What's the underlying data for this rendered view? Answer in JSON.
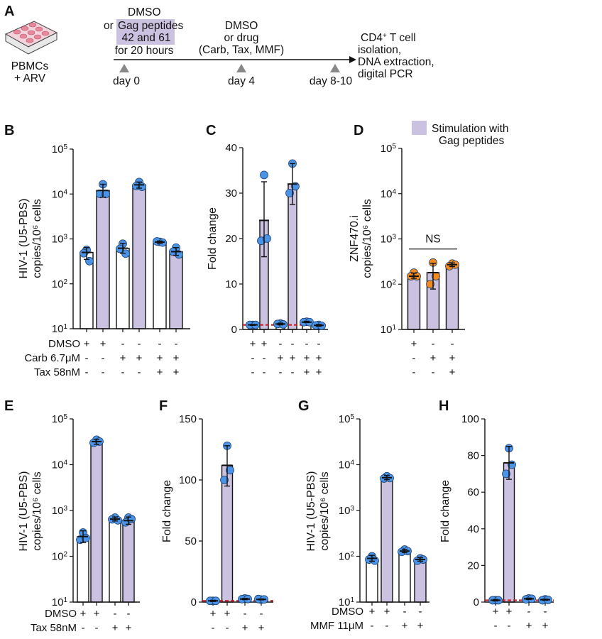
{
  "colors": {
    "stim": "#cbc1e0",
    "point_blue": "#4a93e6",
    "point_orange": "#f28a1e",
    "baseline": "#c4242e",
    "bar_edge": "#111111"
  },
  "schematic": {
    "letter": "A",
    "plate_label": [
      "PBMCs",
      "+ ARV"
    ],
    "step1": {
      "line1": "DMSO",
      "or": "or",
      "peptides1": "Gag peptides",
      "peptides2": "42 and 61",
      "duration": "for 20 hours"
    },
    "step2": [
      "DMSO",
      "or drug",
      "(Carb, Tax, MMF)"
    ],
    "step3": {
      "line1": "CD4",
      "sup": "+",
      "line1b": " T cell",
      "rest": [
        "isolation,",
        "DNA extraction,",
        "digital PCR"
      ]
    },
    "days": [
      "day 0",
      "day 4",
      "day 8-10"
    ]
  },
  "legend": {
    "label1": "Stimulation with",
    "label2": "Gag peptides"
  },
  "chart_data": [
    {
      "id": "B",
      "letter": "B",
      "type": "bar",
      "scale": "log",
      "ylim": [
        10,
        100000
      ],
      "ylabel": [
        "HIV-1 (U5-PBS)",
        "copies/10⁶ cells"
      ],
      "ticks": [
        {
          "v": 10,
          "base": "10",
          "exp": "1"
        },
        {
          "v": 100,
          "base": "10",
          "exp": "2"
        },
        {
          "v": 1000,
          "base": "10",
          "exp": "3"
        },
        {
          "v": 10000,
          "base": "10",
          "exp": "4"
        },
        {
          "v": 100000,
          "base": "10",
          "exp": "5"
        }
      ],
      "point_color": "blue",
      "bars": [
        {
          "mean": 500,
          "err": [
            350,
            640
          ],
          "stim": false,
          "points": [
            570,
            480,
            320
          ]
        },
        {
          "mean": 12000,
          "err": [
            8500,
            16500
          ],
          "stim": true,
          "points": [
            16500,
            10000,
            10000
          ]
        },
        {
          "mean": 620,
          "err": [
            480,
            800
          ],
          "stim": false,
          "points": [
            780,
            600,
            470
          ]
        },
        {
          "mean": 16000,
          "err": [
            13500,
            18500
          ],
          "stim": true,
          "points": [
            18500,
            15000,
            14500
          ]
        },
        {
          "mean": 850,
          "err": [
            800,
            900
          ],
          "stim": false,
          "points": [
            860,
            880,
            830
          ]
        },
        {
          "mean": 520,
          "err": [
            430,
            640
          ],
          "stim": true,
          "points": [
            640,
            520,
            450
          ]
        }
      ],
      "conditions": [
        {
          "label": "DMSO",
          "signs": [
            "+",
            "+",
            "-",
            "-",
            "-",
            "-"
          ]
        },
        {
          "label": "Carb 6.7μM",
          "signs": [
            "-",
            "-",
            "+",
            "+",
            "+",
            "+"
          ]
        },
        {
          "label": "Tax   58nM",
          "signs": [
            "-",
            "-",
            "-",
            "-",
            "+",
            "+"
          ]
        }
      ]
    },
    {
      "id": "C",
      "letter": "C",
      "type": "bar",
      "scale": "linear",
      "ylim": [
        0,
        40
      ],
      "ylabel": [
        "Fold change"
      ],
      "baseline": 1,
      "ticks": [
        {
          "v": 0,
          "base": "0"
        },
        {
          "v": 10,
          "base": "10"
        },
        {
          "v": 20,
          "base": "20"
        },
        {
          "v": 30,
          "base": "30"
        },
        {
          "v": 40,
          "base": "40"
        }
      ],
      "point_color": "blue",
      "bars": [
        {
          "mean": 1,
          "err": [
            0.9,
            1.1
          ],
          "stim": false,
          "points": [
            1,
            1,
            1
          ]
        },
        {
          "mean": 24,
          "err": [
            16,
            32.5
          ],
          "stim": true,
          "points": [
            34,
            19.5,
            20
          ]
        },
        {
          "mean": 1.2,
          "err": [
            1,
            1.4
          ],
          "stim": false,
          "points": [
            1.3,
            1.2,
            1.1
          ]
        },
        {
          "mean": 32,
          "err": [
            27.5,
            36.5
          ],
          "stim": true,
          "points": [
            36.5,
            30,
            31.5
          ]
        },
        {
          "mean": 1.6,
          "err": [
            1.5,
            1.8
          ],
          "stim": false,
          "points": [
            1.7,
            1.6,
            1.6
          ]
        },
        {
          "mean": 0.9,
          "err": [
            0.7,
            1.1
          ],
          "stim": true,
          "points": [
            1,
            0.9,
            0.8
          ]
        }
      ],
      "conditions": [
        {
          "label": "",
          "signs": [
            "+",
            "+",
            "-",
            "-",
            "-",
            "-"
          ]
        },
        {
          "label": "",
          "signs": [
            "-",
            "-",
            "+",
            "+",
            "+",
            "+"
          ]
        },
        {
          "label": "",
          "signs": [
            "-",
            "-",
            "-",
            "-",
            "+",
            "+"
          ]
        }
      ]
    },
    {
      "id": "D",
      "letter": "D",
      "type": "bar",
      "scale": "log",
      "ylim": [
        10,
        100000
      ],
      "ylabel": [
        "ZNF470.i",
        "copies/10⁶ cells"
      ],
      "annotation": "NS",
      "ticks": [
        {
          "v": 10,
          "base": "10",
          "exp": "1"
        },
        {
          "v": 100,
          "base": "10",
          "exp": "2"
        },
        {
          "v": 1000,
          "base": "10",
          "exp": "3"
        },
        {
          "v": 10000,
          "base": "10",
          "exp": "4"
        },
        {
          "v": 100000,
          "base": "10",
          "exp": "5"
        }
      ],
      "point_color": "orange",
      "bars": [
        {
          "mean": 150,
          "err": [
            135,
            175
          ],
          "stim": true,
          "points": [
            180,
            150,
            150
          ]
        },
        {
          "mean": 180,
          "err": [
            78,
            290
          ],
          "stim": true,
          "points": [
            300,
            100,
            150
          ]
        },
        {
          "mean": 270,
          "err": [
            245,
            295
          ],
          "stim": true,
          "points": [
            285,
            250,
            270
          ]
        }
      ],
      "conditions": [
        {
          "label": "",
          "signs": [
            "+",
            "-",
            "-"
          ]
        },
        {
          "label": "",
          "signs": [
            "-",
            "+",
            "+"
          ]
        },
        {
          "label": "",
          "signs": [
            "-",
            "-",
            "+"
          ]
        }
      ]
    },
    {
      "id": "E",
      "letter": "E",
      "type": "bar",
      "scale": "log",
      "ylim": [
        10,
        100000
      ],
      "ylabel": [
        "HIV-1 (U5-PBS)",
        "copies/10⁶ cells"
      ],
      "ticks": [
        {
          "v": 10,
          "base": "10",
          "exp": "1"
        },
        {
          "v": 100,
          "base": "10",
          "exp": "2"
        },
        {
          "v": 1000,
          "base": "10",
          "exp": "3"
        },
        {
          "v": 10000,
          "base": "10",
          "exp": "4"
        },
        {
          "v": 100000,
          "base": "10",
          "exp": "5"
        }
      ],
      "point_color": "blue",
      "bars": [
        {
          "mean": 270,
          "err": [
            200,
            360
          ],
          "stim": false,
          "points": [
            330,
            230,
            250
          ]
        },
        {
          "mean": 32000,
          "err": [
            28000,
            36000
          ],
          "stim": true,
          "points": [
            35000,
            30000,
            32000
          ]
        },
        {
          "mean": 650,
          "err": [
            590,
            720
          ],
          "stim": false,
          "points": [
            700,
            640,
            610
          ]
        },
        {
          "mean": 600,
          "err": [
            500,
            720
          ],
          "stim": true,
          "points": [
            700,
            550,
            650
          ]
        }
      ],
      "conditions": [
        {
          "label": "DMSO",
          "signs": [
            "+",
            "+",
            "-",
            "-"
          ]
        },
        {
          "label": "Tax   58nM",
          "signs": [
            "-",
            "-",
            "+",
            "+"
          ]
        }
      ]
    },
    {
      "id": "F",
      "letter": "F",
      "type": "bar",
      "scale": "linear",
      "ylim": [
        0,
        150
      ],
      "ylabel": [
        "Fold change"
      ],
      "baseline": 1,
      "ticks": [
        {
          "v": 0,
          "base": "0"
        },
        {
          "v": 50,
          "base": "50"
        },
        {
          "v": 100,
          "base": "100"
        },
        {
          "v": 150,
          "base": "150"
        }
      ],
      "point_color": "blue",
      "bars": [
        {
          "mean": 1,
          "err": [
            0.5,
            1.5
          ],
          "stim": false,
          "points": [
            1,
            1,
            1
          ]
        },
        {
          "mean": 112,
          "err": [
            95,
            128
          ],
          "stim": true,
          "points": [
            128,
            100,
            108
          ]
        },
        {
          "mean": 2.5,
          "err": [
            2,
            3
          ],
          "stim": false,
          "points": [
            3,
            2.4,
            2.5
          ]
        },
        {
          "mean": 2.2,
          "err": [
            1.8,
            2.6
          ],
          "stim": true,
          "points": [
            2,
            2.5,
            2.2
          ]
        }
      ],
      "conditions": [
        {
          "label": "",
          "signs": [
            "+",
            "+",
            "-",
            "-"
          ]
        },
        {
          "label": "",
          "signs": [
            "-",
            "-",
            "+",
            "+"
          ]
        }
      ]
    },
    {
      "id": "G",
      "letter": "G",
      "type": "bar",
      "scale": "log",
      "ylim": [
        10,
        100000
      ],
      "ylabel": [
        "HIV-1 (U5-PBS)",
        "copies/10⁶ cells"
      ],
      "ticks": [
        {
          "v": 10,
          "base": "10",
          "exp": "1"
        },
        {
          "v": 100,
          "base": "10",
          "exp": "2"
        },
        {
          "v": 1000,
          "base": "10",
          "exp": "3"
        },
        {
          "v": 10000,
          "base": "10",
          "exp": "4"
        },
        {
          "v": 100000,
          "base": "10",
          "exp": "5"
        }
      ],
      "point_color": "blue",
      "bars": [
        {
          "mean": 90,
          "err": [
            78,
            105
          ],
          "stim": false,
          "points": [
            100,
            85,
            80
          ]
        },
        {
          "mean": 5200,
          "err": [
            4700,
            5800
          ],
          "stim": true,
          "points": [
            5600,
            5000,
            5100
          ]
        },
        {
          "mean": 130,
          "err": [
            120,
            142
          ],
          "stim": false,
          "points": [
            140,
            125,
            130
          ]
        },
        {
          "mean": 85,
          "err": [
            78,
            93
          ],
          "stim": true,
          "points": [
            90,
            80,
            85
          ]
        }
      ],
      "conditions": [
        {
          "label": "DMSO",
          "signs": [
            "+",
            "+",
            "-",
            "-"
          ]
        },
        {
          "label": "MMF 11μM",
          "signs": [
            "-",
            "-",
            "+",
            "+"
          ]
        }
      ]
    },
    {
      "id": "H",
      "letter": "H",
      "type": "bar",
      "scale": "linear",
      "ylim": [
        0,
        100
      ],
      "ylabel": [
        "Fold change"
      ],
      "baseline": 1,
      "ticks": [
        {
          "v": 0,
          "base": "0"
        },
        {
          "v": 20,
          "base": "20"
        },
        {
          "v": 40,
          "base": "40"
        },
        {
          "v": 60,
          "base": "60"
        },
        {
          "v": 80,
          "base": "80"
        },
        {
          "v": 100,
          "base": "100"
        }
      ],
      "point_color": "blue",
      "bars": [
        {
          "mean": 1,
          "err": [
            0.6,
            1.4
          ],
          "stim": false,
          "points": [
            1,
            1,
            1
          ]
        },
        {
          "mean": 76,
          "err": [
            67,
            85
          ],
          "stim": true,
          "points": [
            84,
            70,
            75
          ]
        },
        {
          "mean": 1.8,
          "err": [
            1.4,
            2.2
          ],
          "stim": false,
          "points": [
            2,
            1.5,
            1.8
          ]
        },
        {
          "mean": 1.3,
          "err": [
            1,
            1.6
          ],
          "stim": true,
          "points": [
            1.5,
            1,
            1.2
          ]
        }
      ],
      "conditions": [
        {
          "label": "",
          "signs": [
            "+",
            "+",
            "-",
            "-"
          ]
        },
        {
          "label": "",
          "signs": [
            "-",
            "-",
            "+",
            "+"
          ]
        }
      ]
    }
  ]
}
